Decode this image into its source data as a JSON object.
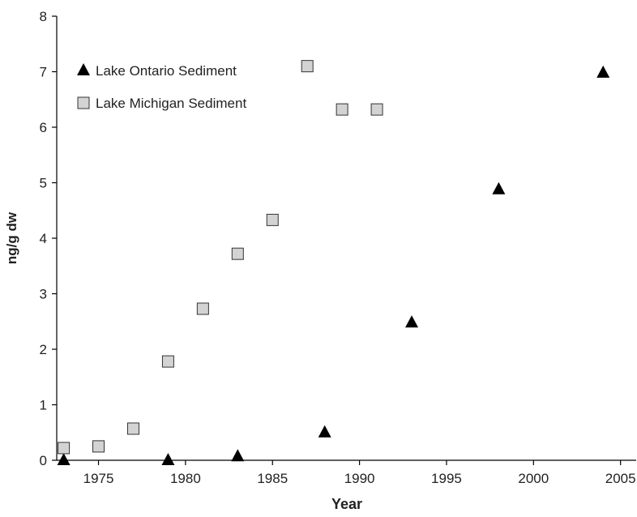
{
  "chart_data": {
    "type": "scatter",
    "xlabel": "Year",
    "ylabel": "ng/g dw",
    "xlim": [
      1972.6,
      2005.9
    ],
    "xticks": [
      1975,
      1980,
      1985,
      1990,
      1995,
      2000,
      2005
    ],
    "ylim": [
      0,
      8
    ],
    "yticks": [
      0,
      1,
      2,
      3,
      4,
      5,
      6,
      7,
      8
    ],
    "legend": "upper left",
    "grid": false,
    "series": [
      {
        "name": "Lake Ontario Sediment",
        "marker": "triangle",
        "color": "#000000",
        "x": [
          1973,
          1979,
          1983,
          1988,
          1993,
          1998,
          2004
        ],
        "values": [
          0,
          0,
          0.07,
          0.5,
          2.48,
          4.88,
          6.98
        ]
      },
      {
        "name": "Lake Michigan Sediment",
        "marker": "square",
        "color": "#d3d3d3",
        "x": [
          1973,
          1975,
          1977,
          1979,
          1981,
          1983,
          1985,
          1987,
          1989,
          1991
        ],
        "values": [
          0.22,
          0.25,
          0.57,
          1.78,
          2.73,
          3.72,
          4.33,
          7.1,
          6.32,
          6.32
        ]
      }
    ]
  }
}
